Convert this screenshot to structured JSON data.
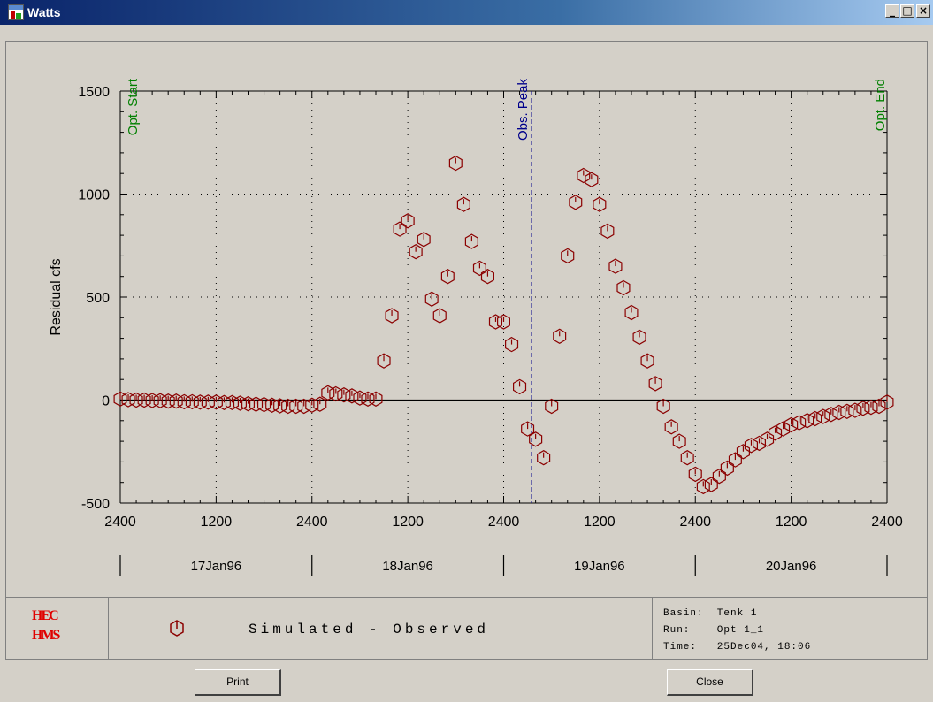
{
  "window": {
    "title": "Watts",
    "minimize": "_",
    "maximize": "□",
    "close": "×"
  },
  "chart_data": {
    "type": "scatter",
    "ylabel": "Residual cfs",
    "ylim": [
      -500,
      1500
    ],
    "yticks": [
      -500,
      0,
      500,
      1000,
      1500
    ],
    "x_tick_labels": [
      "2400",
      "1200",
      "2400",
      "1200",
      "2400",
      "1200",
      "2400",
      "1200",
      "2400"
    ],
    "x_tick_hours": [
      0,
      12,
      24,
      36,
      48,
      60,
      72,
      84,
      96
    ],
    "date_labels": [
      "17Jan96",
      "18Jan96",
      "19Jan96",
      "20Jan96"
    ],
    "grid": true,
    "markers": [
      {
        "label": "Opt. Start",
        "hour": 0,
        "color": "#008000"
      },
      {
        "label": "Obs. Peak",
        "hour": 51.5,
        "color": "#00008b"
      },
      {
        "label": "Opt. End",
        "hour": 96,
        "color": "#008000"
      }
    ],
    "series": [
      {
        "name": "Simulated - Observed",
        "color": "#8b0000",
        "x": [
          0,
          1,
          2,
          3,
          4,
          5,
          6,
          7,
          8,
          9,
          10,
          11,
          12,
          13,
          14,
          15,
          16,
          17,
          18,
          19,
          20,
          21,
          22,
          23,
          24,
          25,
          26,
          27,
          28,
          29,
          30,
          31,
          32,
          33,
          34,
          35,
          36,
          37,
          38,
          39,
          40,
          41,
          42,
          43,
          44,
          45,
          46,
          47,
          48,
          49,
          50,
          51,
          52,
          53,
          54,
          55,
          56,
          57,
          58,
          59,
          60,
          61,
          62,
          63,
          64,
          65,
          66,
          67,
          68,
          69,
          70,
          71,
          72,
          73,
          74,
          75,
          76,
          77,
          78,
          79,
          80,
          81,
          82,
          83,
          84,
          85,
          86,
          87,
          88,
          89,
          90,
          91,
          92,
          93,
          94,
          95,
          96
        ],
        "y": [
          5,
          2,
          0,
          0,
          -2,
          -3,
          -5,
          -5,
          -8,
          -8,
          -10,
          -10,
          -10,
          -12,
          -12,
          -15,
          -18,
          -20,
          -22,
          -25,
          -28,
          -30,
          -30,
          -30,
          -25,
          -20,
          35,
          30,
          25,
          20,
          10,
          5,
          5,
          190,
          410,
          830,
          870,
          720,
          780,
          490,
          410,
          600,
          1150,
          950,
          770,
          640,
          600,
          380,
          380,
          270,
          65,
          -140,
          -190,
          -280,
          -30,
          310,
          700,
          960,
          1090,
          1070,
          950,
          820,
          650,
          545,
          425,
          305,
          190,
          80,
          -30,
          -130,
          -200,
          -280,
          -360,
          -420,
          -410,
          -370,
          -330,
          -290,
          -250,
          -220,
          -210,
          -190,
          -160,
          -140,
          -120,
          -110,
          -100,
          -90,
          -80,
          -70,
          -60,
          -55,
          -50,
          -40,
          -35,
          -30,
          -10
        ]
      }
    ]
  },
  "legend": {
    "logo_line1": "HEC",
    "logo_line2": "HMS",
    "series_label": "Simulated - Observed"
  },
  "info": {
    "basin": "Basin:  Tenk 1",
    "run": "Run:    Opt 1_1",
    "time": "Time:   25Dec04, 18:06"
  },
  "buttons": {
    "print": "Print",
    "close": "Close"
  }
}
